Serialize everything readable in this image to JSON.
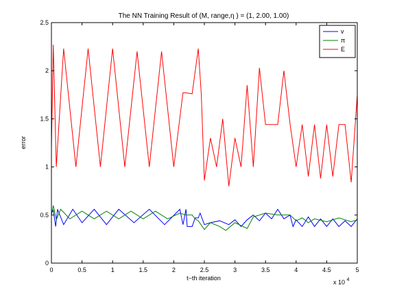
{
  "chart_data": {
    "type": "line",
    "title": "The NN Training Result of (M, range,η ) = (1, 2.00, 1.00)",
    "xlabel": "t−th iteration",
    "ylabel": "error",
    "x_exponent_label": "x 10",
    "x_exponent_power": "4",
    "xlim": [
      0,
      50000
    ],
    "ylim": [
      0,
      2.5
    ],
    "grid": false,
    "legend_position": "top-right",
    "x_ticks": [
      0,
      5000,
      10000,
      15000,
      20000,
      25000,
      30000,
      35000,
      40000,
      45000,
      50000
    ],
    "x_tick_labels": [
      "0",
      "0.5",
      "1",
      "1.5",
      "2",
      "2.5",
      "3",
      "3.5",
      "4",
      "4.5",
      "5"
    ],
    "y_ticks": [
      0,
      0.5,
      1,
      1.5,
      2,
      2.5
    ],
    "y_tick_labels": [
      "0",
      "0.5",
      "1",
      "1.5",
      "2",
      "2.5"
    ],
    "series": [
      {
        "name": "v",
        "color": "#0000ff",
        "values": [
          [
            0,
            0.52
          ],
          [
            300,
            0.55
          ],
          [
            700,
            0.38
          ],
          [
            1000,
            0.56
          ],
          [
            2000,
            0.4
          ],
          [
            3500,
            0.56
          ],
          [
            5000,
            0.42
          ],
          [
            7000,
            0.56
          ],
          [
            9000,
            0.4
          ],
          [
            11000,
            0.56
          ],
          [
            13500,
            0.42
          ],
          [
            16000,
            0.56
          ],
          [
            18500,
            0.4
          ],
          [
            21000,
            0.56
          ],
          [
            21500,
            0.4
          ],
          [
            22000,
            0.56
          ],
          [
            22200,
            0.38
          ],
          [
            23000,
            0.38
          ],
          [
            23500,
            0.47
          ],
          [
            24000,
            0.47
          ],
          [
            24300,
            0.52
          ],
          [
            25000,
            0.4
          ],
          [
            26000,
            0.42
          ],
          [
            27500,
            0.44
          ],
          [
            29000,
            0.4
          ],
          [
            30000,
            0.45
          ],
          [
            31000,
            0.38
          ],
          [
            32000,
            0.45
          ],
          [
            33000,
            0.5
          ],
          [
            34000,
            0.44
          ],
          [
            35000,
            0.52
          ],
          [
            36000,
            0.46
          ],
          [
            37000,
            0.56
          ],
          [
            38000,
            0.46
          ],
          [
            39000,
            0.5
          ],
          [
            39500,
            0.38
          ],
          [
            40000,
            0.45
          ],
          [
            41000,
            0.38
          ],
          [
            42000,
            0.48
          ],
          [
            43000,
            0.38
          ],
          [
            44000,
            0.46
          ],
          [
            45000,
            0.38
          ],
          [
            46000,
            0.46
          ],
          [
            47000,
            0.38
          ],
          [
            48000,
            0.44
          ],
          [
            49000,
            0.38
          ],
          [
            50000,
            0.46
          ]
        ]
      },
      {
        "name": "π",
        "color": "#008000",
        "values": [
          [
            0,
            0.5
          ],
          [
            300,
            0.6
          ],
          [
            800,
            0.45
          ],
          [
            1500,
            0.56
          ],
          [
            3000,
            0.46
          ],
          [
            5000,
            0.54
          ],
          [
            7000,
            0.46
          ],
          [
            9000,
            0.54
          ],
          [
            11000,
            0.46
          ],
          [
            13000,
            0.54
          ],
          [
            15000,
            0.46
          ],
          [
            17000,
            0.54
          ],
          [
            19000,
            0.46
          ],
          [
            21000,
            0.52
          ],
          [
            22000,
            0.5
          ],
          [
            23000,
            0.5
          ],
          [
            23500,
            0.46
          ],
          [
            24000,
            0.44
          ],
          [
            25000,
            0.35
          ],
          [
            26000,
            0.42
          ],
          [
            27500,
            0.38
          ],
          [
            28500,
            0.34
          ],
          [
            30000,
            0.42
          ],
          [
            32000,
            0.36
          ],
          [
            33000,
            0.48
          ],
          [
            35000,
            0.52
          ],
          [
            37000,
            0.5
          ],
          [
            39000,
            0.5
          ],
          [
            40000,
            0.44
          ],
          [
            41000,
            0.47
          ],
          [
            42000,
            0.42
          ],
          [
            43000,
            0.46
          ],
          [
            45000,
            0.43
          ],
          [
            47000,
            0.47
          ],
          [
            49000,
            0.43
          ],
          [
            50000,
            0.45
          ]
        ]
      },
      {
        "name": "E",
        "color": "#ff0000",
        "values": [
          [
            0,
            1.2
          ],
          [
            300,
            2.27
          ],
          [
            800,
            1.0
          ],
          [
            2000,
            2.23
          ],
          [
            4000,
            1.0
          ],
          [
            6000,
            2.23
          ],
          [
            8000,
            1.0
          ],
          [
            10000,
            2.23
          ],
          [
            12000,
            1.0
          ],
          [
            14000,
            2.2
          ],
          [
            16000,
            1.0
          ],
          [
            18000,
            2.2
          ],
          [
            20000,
            1.0
          ],
          [
            21500,
            1.77
          ],
          [
            22000,
            1.77
          ],
          [
            23000,
            1.76
          ],
          [
            24000,
            2.23
          ],
          [
            24500,
            1.76
          ],
          [
            25000,
            0.86
          ],
          [
            26000,
            1.3
          ],
          [
            27000,
            1.0
          ],
          [
            28000,
            1.5
          ],
          [
            29000,
            0.8
          ],
          [
            30000,
            1.3
          ],
          [
            31000,
            1.0
          ],
          [
            32000,
            1.85
          ],
          [
            33000,
            1.0
          ],
          [
            34000,
            2.03
          ],
          [
            35000,
            1.44
          ],
          [
            37000,
            1.44
          ],
          [
            38000,
            2.0
          ],
          [
            39000,
            1.45
          ],
          [
            40000,
            1.0
          ],
          [
            41000,
            1.44
          ],
          [
            42000,
            0.9
          ],
          [
            43000,
            1.44
          ],
          [
            44000,
            0.88
          ],
          [
            45000,
            1.44
          ],
          [
            46000,
            0.9
          ],
          [
            47000,
            1.44
          ],
          [
            48000,
            1.44
          ],
          [
            49000,
            0.84
          ],
          [
            50000,
            1.75
          ]
        ]
      }
    ]
  }
}
